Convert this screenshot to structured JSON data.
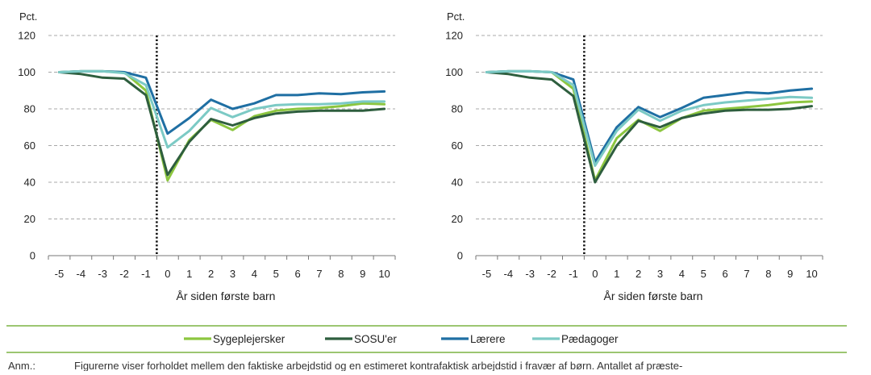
{
  "chart_data": [
    {
      "type": "line",
      "ylabel": "Pct.",
      "xlabel": "År siden første barn",
      "x": [
        -5,
        -4,
        -3,
        -2,
        -1,
        0,
        1,
        2,
        3,
        4,
        5,
        6,
        7,
        8,
        9,
        10
      ],
      "ylim": [
        0,
        120
      ],
      "yticks": [
        0,
        20,
        40,
        60,
        80,
        100,
        120
      ],
      "grid": true,
      "event_line_x": -0.5,
      "series": [
        {
          "name": "Sygeplejersker",
          "values": [
            100,
            100.5,
            100.5,
            100,
            90,
            41,
            63,
            74,
            68.5,
            76,
            79,
            80,
            80.5,
            81.5,
            83,
            82.5
          ]
        },
        {
          "name": "SOSU'er",
          "values": [
            100,
            99,
            97,
            96.5,
            87.5,
            44,
            62,
            74.5,
            71,
            75,
            77.5,
            78.5,
            79,
            79,
            79,
            80
          ]
        },
        {
          "name": "Lærere",
          "values": [
            100,
            100.5,
            100.5,
            100,
            97,
            66.5,
            75,
            85,
            80,
            83,
            87.5,
            87.5,
            88.5,
            88,
            89,
            89.5
          ]
        },
        {
          "name": "Pædagoger",
          "values": [
            100,
            100.5,
            100.5,
            99.5,
            93,
            59,
            68,
            80.5,
            75.5,
            80,
            82,
            82.5,
            82.5,
            83,
            84,
            84
          ]
        }
      ]
    },
    {
      "type": "line",
      "ylabel": "Pct.",
      "xlabel": "År siden første barn",
      "x": [
        -5,
        -4,
        -3,
        -2,
        -1,
        0,
        1,
        2,
        3,
        4,
        5,
        6,
        7,
        8,
        9,
        10
      ],
      "ylim": [
        0,
        120
      ],
      "yticks": [
        0,
        20,
        40,
        60,
        80,
        100,
        120
      ],
      "grid": true,
      "event_line_x": -0.5,
      "series": [
        {
          "name": "Sygeplejersker",
          "values": [
            100,
            100.5,
            100.5,
            100,
            91,
            41,
            64,
            74,
            68,
            75,
            79,
            80,
            81,
            82,
            83.5,
            84
          ]
        },
        {
          "name": "SOSU'er",
          "values": [
            100,
            99,
            97,
            96,
            87,
            40,
            60,
            73.5,
            70,
            75,
            77.5,
            79,
            79.5,
            79.5,
            80,
            81.5
          ]
        },
        {
          "name": "Lærere",
          "values": [
            100,
            100.5,
            100.5,
            100,
            96,
            51,
            70,
            81,
            75.5,
            80.5,
            86,
            87.5,
            89,
            88.5,
            90,
            91
          ]
        },
        {
          "name": "Pædagoger",
          "values": [
            100,
            100.5,
            100.5,
            100,
            93,
            49,
            68,
            79.5,
            73.5,
            79,
            82,
            83.5,
            84.5,
            85.5,
            86.5,
            86
          ]
        }
      ]
    }
  ],
  "colors": {
    "Sygeplejersker": "#8cc63f",
    "SOSU'er": "#2e5e3e",
    "Lærere": "#1f6fa3",
    "Pædagoger": "#7ccac5",
    "rule": "#7cb342",
    "grid": "#a8a8a8",
    "axis": "#777777"
  },
  "legend": {
    "placement": "bottom",
    "items": [
      "Sygeplejersker",
      "SOSU'er",
      "Lærere",
      "Pædagoger"
    ]
  },
  "note": {
    "label": "Anm.:",
    "text": "Figurerne viser forholdet mellem den faktiske arbejdstid og en estimeret kontrafaktisk arbejdstid i fravær af børn. Antallet af præste-"
  }
}
